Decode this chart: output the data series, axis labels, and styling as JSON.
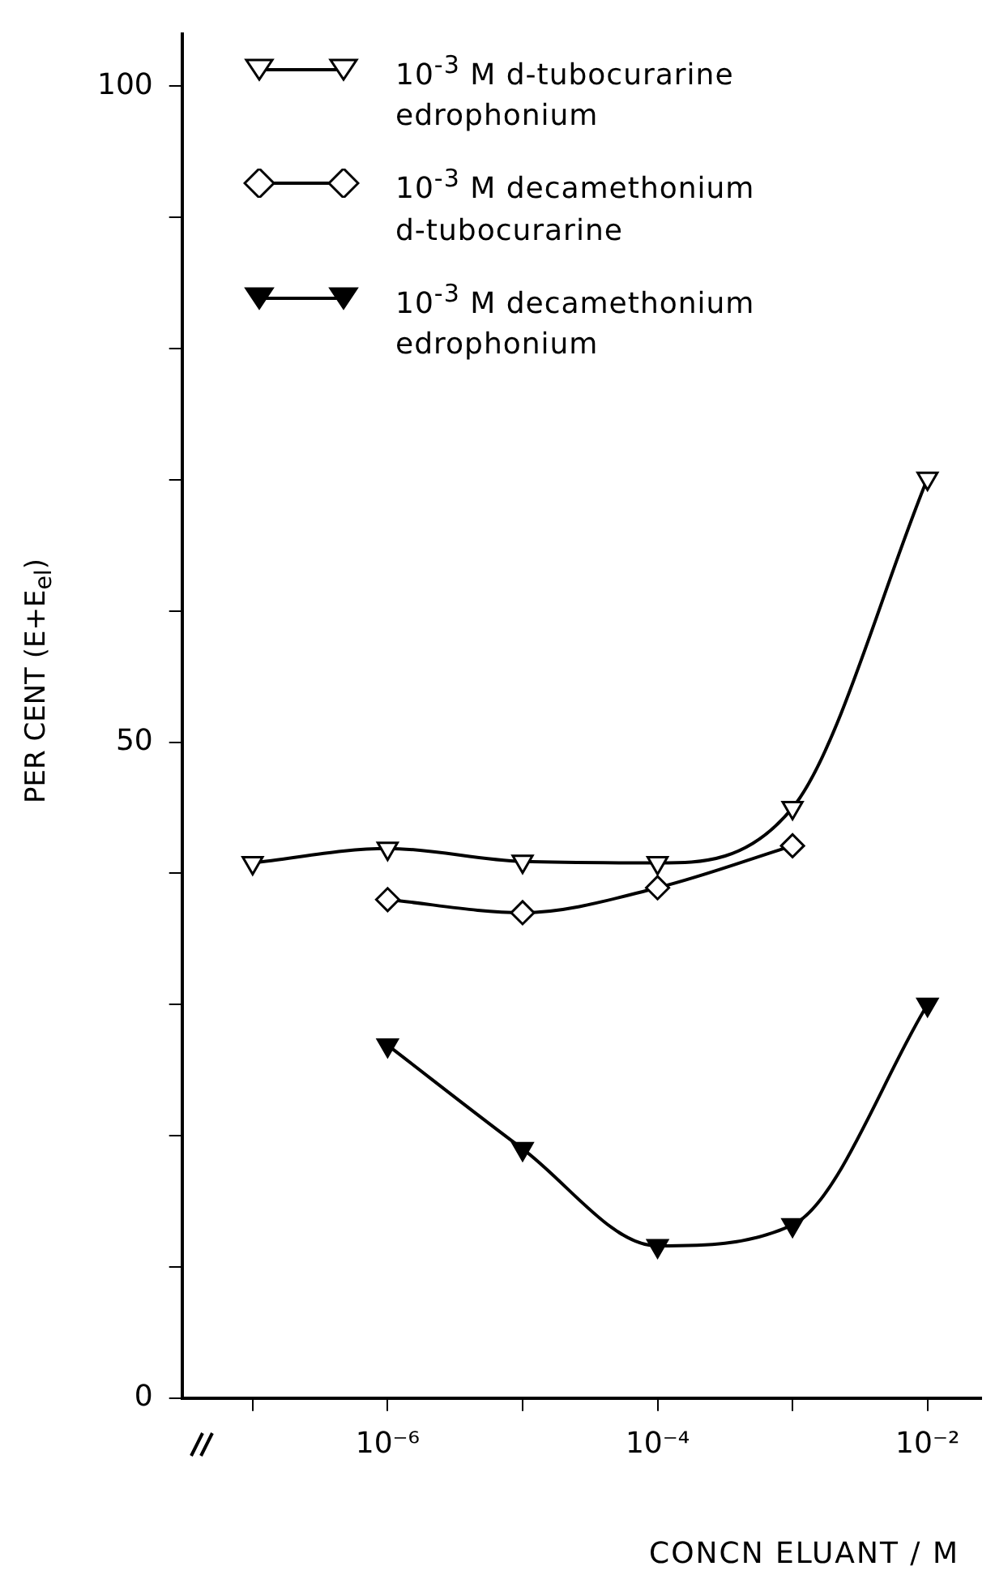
{
  "chart_data": {
    "type": "line",
    "xlabel": "CONCN ELUANT / M",
    "ylabel": "PER CENT (E+E$_{el}$)",
    "log": "x",
    "xlim": [
      3.16e-08,
      0.025
    ],
    "ylim": [
      0,
      104
    ],
    "xticks": [
      {
        "value": 1e-07,
        "label": null
      },
      {
        "value": 1e-06,
        "label": "10⁻⁶"
      },
      {
        "value": 1e-05,
        "label": null
      },
      {
        "value": 0.0001,
        "label": "10⁻⁴"
      },
      {
        "value": 0.001,
        "label": null
      },
      {
        "value": 0.01,
        "label": "10⁻²"
      }
    ],
    "yticks": [
      0,
      {
        "value": 10,
        "label": null
      },
      {
        "value": 20,
        "label": null
      },
      {
        "value": 30,
        "label": null
      },
      {
        "value": 40,
        "label": null
      },
      50,
      {
        "value": 60,
        "label": null
      },
      {
        "value": 70,
        "label": null
      },
      {
        "value": 80,
        "label": null
      },
      {
        "value": 90,
        "label": null
      },
      100
    ],
    "grid": false,
    "legend": "top left",
    "line_style": "solid",
    "series": [
      {
        "name": "10$^{-3}$ M  d-tubocurarine\nedrophonium",
        "color": "#000000",
        "marker": "triangle",
        "x": [
          1e-07,
          1e-06,
          1e-05,
          0.0001,
          0.001,
          0.01
        ],
        "values": [
          40.8,
          41.9,
          40.9,
          40.8,
          45.0,
          70.1
        ]
      },
      {
        "name": "10$^{-3}$ M  decamethonium\nd-tubocurarine",
        "color": "#000000",
        "marker": "diamond",
        "x": [
          1e-06,
          1e-05,
          0.0001,
          0.001
        ],
        "values": [
          38.0,
          37.0,
          38.9,
          42.1
        ]
      },
      {
        "name": "10$^{-3}$ M  decamethonium\nedrophonium",
        "color": "#000000",
        "marker": "triangle",
        "x": [
          1e-06,
          1e-05,
          0.0001,
          0.001,
          0.01
        ],
        "values": [
          26.9,
          19.0,
          11.6,
          13.2,
          30.0
        ]
      }
    ]
  }
}
